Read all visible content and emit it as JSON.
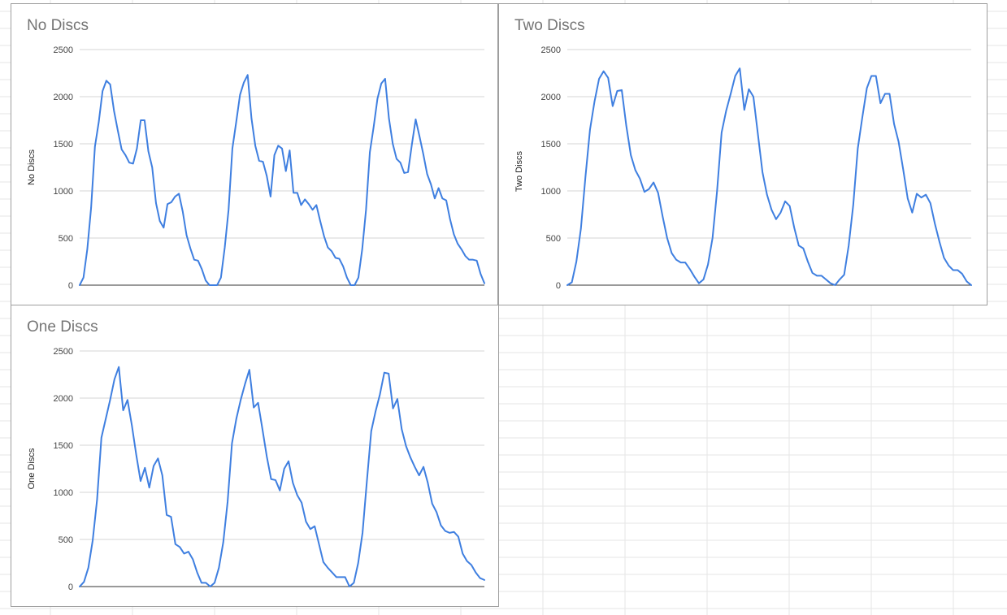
{
  "colors": {
    "series_line": "#3f7fe0",
    "gridline": "#d6d6d6",
    "baseline": "#333333",
    "title": "#757575",
    "sheet_grid": "#e6e6e6"
  },
  "chart_data": [
    {
      "type": "line",
      "title": "No Discs",
      "ylabel": "No Discs",
      "xlabel": "",
      "ylim": [
        0,
        2500
      ],
      "yticks": [
        0,
        500,
        1000,
        1500,
        2000,
        2500
      ],
      "grid": true,
      "legend": "none",
      "series": [
        {
          "values": [
            0,
            80,
            380,
            820,
            1470,
            1730,
            2060,
            2170,
            2130,
            1850,
            1640,
            1440,
            1380,
            1300,
            1290,
            1450,
            1750,
            1750,
            1420,
            1250,
            870,
            680,
            610,
            860,
            880,
            940,
            970,
            780,
            530,
            390,
            270,
            260,
            170,
            50,
            0,
            0,
            0,
            80,
            400,
            800,
            1450,
            1730,
            2020,
            2150,
            2230,
            1770,
            1480,
            1320,
            1310,
            1160,
            940,
            1380,
            1480,
            1450,
            1210,
            1430,
            980,
            980,
            850,
            910,
            860,
            800,
            850,
            680,
            520,
            400,
            360,
            290,
            280,
            200,
            80,
            0,
            0,
            80,
            380,
            800,
            1410,
            1680,
            1980,
            2140,
            2190,
            1770,
            1500,
            1340,
            1300,
            1190,
            1200,
            1490,
            1760,
            1580,
            1390,
            1180,
            1070,
            920,
            1030,
            920,
            900,
            700,
            540,
            440,
            380,
            310,
            270,
            270,
            260,
            120,
            20
          ]
        }
      ]
    },
    {
      "type": "line",
      "title": "Two Discs",
      "ylabel": "Two Discs",
      "xlabel": "",
      "ylim": [
        0,
        2500
      ],
      "yticks": [
        0,
        500,
        1000,
        1500,
        2000,
        2500
      ],
      "grid": true,
      "legend": "none",
      "series": [
        {
          "values": [
            0,
            30,
            250,
            600,
            1150,
            1650,
            1950,
            2190,
            2270,
            2200,
            1900,
            2060,
            2070,
            1690,
            1380,
            1220,
            1130,
            990,
            1020,
            1090,
            980,
            730,
            500,
            340,
            270,
            240,
            240,
            170,
            90,
            20,
            60,
            220,
            500,
            1000,
            1620,
            1850,
            2030,
            2220,
            2300,
            1860,
            2080,
            2000,
            1600,
            1200,
            960,
            800,
            700,
            770,
            890,
            840,
            610,
            420,
            390,
            250,
            130,
            100,
            100,
            60,
            20,
            0,
            60,
            110,
            420,
            850,
            1450,
            1780,
            2090,
            2220,
            2220,
            1930,
            2030,
            2030,
            1710,
            1520,
            1230,
            920,
            770,
            970,
            930,
            960,
            870,
            650,
            460,
            290,
            210,
            160,
            160,
            120,
            40,
            0
          ]
        }
      ]
    },
    {
      "type": "line",
      "title": "One Discs",
      "ylabel": "One Discs",
      "xlabel": "",
      "ylim": [
        0,
        2500
      ],
      "yticks": [
        0,
        500,
        1000,
        1500,
        2000,
        2500
      ],
      "grid": true,
      "legend": "none",
      "series": [
        {
          "values": [
            0,
            50,
            200,
            490,
            920,
            1580,
            1780,
            1980,
            2200,
            2330,
            1870,
            1980,
            1710,
            1400,
            1120,
            1260,
            1050,
            1280,
            1360,
            1180,
            760,
            740,
            450,
            420,
            350,
            370,
            290,
            150,
            40,
            40,
            0,
            40,
            200,
            470,
            900,
            1520,
            1780,
            1980,
            2150,
            2300,
            1900,
            1950,
            1670,
            1380,
            1140,
            1130,
            1020,
            1250,
            1330,
            1100,
            970,
            890,
            690,
            610,
            640,
            450,
            260,
            200,
            150,
            100,
            100,
            100,
            0,
            40,
            250,
            570,
            1120,
            1650,
            1860,
            2040,
            2270,
            2260,
            1890,
            1990,
            1670,
            1490,
            1370,
            1270,
            1180,
            1270,
            1100,
            880,
            790,
            650,
            590,
            570,
            580,
            530,
            350,
            270,
            230,
            150,
            90,
            70
          ]
        }
      ]
    }
  ]
}
